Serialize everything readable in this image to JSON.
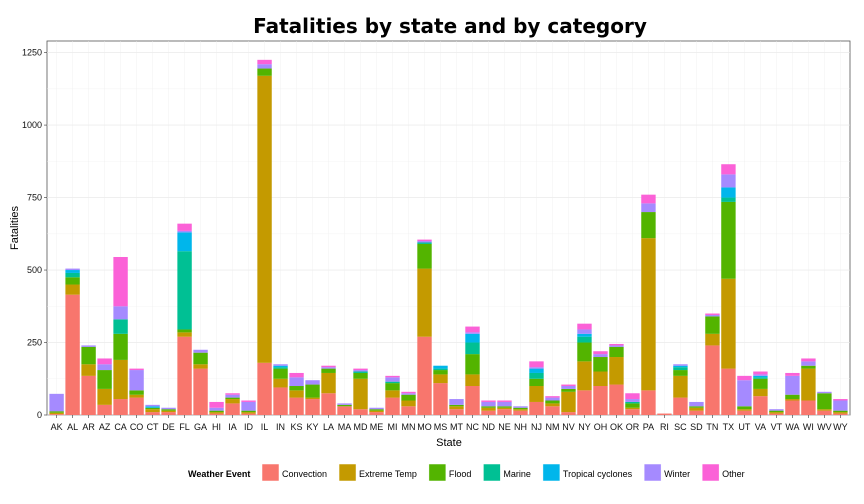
{
  "chart_data": {
    "type": "bar",
    "stacked": true,
    "title": "Fatalities by state and by category",
    "xlabel": "State",
    "ylabel": "Fatalities",
    "ylim": [
      0,
      1290
    ],
    "yticks": [
      0,
      250,
      500,
      750,
      1000,
      1250
    ],
    "grid": true,
    "legend_position": "bottom",
    "legend_title": "Weather Event",
    "categories": [
      "AK",
      "AL",
      "AR",
      "AZ",
      "CA",
      "CO",
      "CT",
      "DE",
      "FL",
      "GA",
      "HI",
      "IA",
      "ID",
      "IL",
      "IN",
      "KS",
      "KY",
      "LA",
      "MA",
      "MD",
      "ME",
      "MI",
      "MN",
      "MO",
      "MS",
      "MT",
      "NC",
      "ND",
      "NE",
      "NH",
      "NJ",
      "NM",
      "NV",
      "NY",
      "OH",
      "OK",
      "OR",
      "PA",
      "RI",
      "SC",
      "SD",
      "TN",
      "TX",
      "UT",
      "VA",
      "VT",
      "WA",
      "WI",
      "WV",
      "WY"
    ],
    "series": [
      {
        "name": "Convection",
        "color": "#F8766D",
        "values": [
          3,
          415,
          135,
          35,
          55,
          60,
          10,
          10,
          270,
          160,
          5,
          40,
          5,
          180,
          95,
          60,
          55,
          75,
          30,
          20,
          10,
          60,
          30,
          270,
          110,
          20,
          100,
          15,
          20,
          15,
          45,
          30,
          10,
          85,
          100,
          105,
          20,
          85,
          5,
          60,
          15,
          240,
          160,
          15,
          65,
          5,
          50,
          50,
          15,
          5
        ]
      },
      {
        "name": "Extreme Temp",
        "color": "#C49A00",
        "values": [
          5,
          35,
          40,
          55,
          135,
          10,
          10,
          5,
          15,
          15,
          5,
          15,
          5,
          990,
          30,
          25,
          5,
          70,
          0,
          105,
          5,
          25,
          20,
          235,
          30,
          10,
          40,
          10,
          5,
          5,
          55,
          10,
          70,
          100,
          50,
          95,
          5,
          525,
          0,
          75,
          10,
          40,
          310,
          5,
          25,
          5,
          5,
          110,
          5,
          5
        ]
      },
      {
        "name": "Flood",
        "color": "#53B400",
        "values": [
          5,
          25,
          60,
          65,
          90,
          15,
          5,
          5,
          10,
          40,
          5,
          5,
          5,
          25,
          35,
          15,
          45,
          15,
          5,
          20,
          5,
          25,
          20,
          85,
          15,
          5,
          70,
          5,
          5,
          5,
          25,
          10,
          10,
          65,
          50,
          35,
          15,
          90,
          0,
          20,
          5,
          60,
          265,
          10,
          35,
          5,
          15,
          10,
          55,
          5
        ]
      },
      {
        "name": "Marine",
        "color": "#00C094",
        "values": [
          0,
          15,
          0,
          0,
          50,
          0,
          0,
          0,
          270,
          0,
          0,
          0,
          0,
          0,
          5,
          0,
          0,
          0,
          0,
          5,
          0,
          5,
          0,
          5,
          5,
          0,
          40,
          0,
          0,
          0,
          20,
          0,
          0,
          20,
          0,
          0,
          5,
          0,
          0,
          10,
          0,
          0,
          15,
          0,
          5,
          0,
          0,
          0,
          0,
          0
        ]
      },
      {
        "name": "Tropical cyclones",
        "color": "#00B6EB",
        "values": [
          0,
          10,
          0,
          0,
          0,
          0,
          5,
          0,
          65,
          0,
          0,
          0,
          0,
          0,
          5,
          0,
          0,
          0,
          0,
          0,
          0,
          0,
          0,
          0,
          10,
          0,
          30,
          0,
          0,
          0,
          15,
          0,
          0,
          10,
          0,
          0,
          0,
          0,
          0,
          5,
          0,
          0,
          35,
          0,
          5,
          0,
          0,
          0,
          0,
          0
        ]
      },
      {
        "name": "Winter",
        "color": "#A58AFF",
        "values": [
          60,
          5,
          5,
          20,
          45,
          70,
          5,
          5,
          5,
          10,
          10,
          10,
          30,
          15,
          5,
          30,
          15,
          5,
          5,
          5,
          5,
          15,
          5,
          5,
          0,
          20,
          5,
          15,
          15,
          5,
          5,
          10,
          10,
          15,
          10,
          5,
          10,
          30,
          0,
          5,
          15,
          5,
          45,
          90,
          5,
          5,
          65,
          15,
          5,
          35
        ]
      },
      {
        "name": "Other",
        "color": "#FB61D7",
        "values": [
          0,
          0,
          0,
          20,
          170,
          5,
          0,
          0,
          25,
          0,
          20,
          5,
          5,
          15,
          0,
          15,
          0,
          5,
          0,
          5,
          0,
          5,
          5,
          5,
          0,
          0,
          20,
          5,
          5,
          0,
          20,
          5,
          5,
          20,
          10,
          5,
          20,
          30,
          0,
          0,
          0,
          5,
          35,
          15,
          10,
          0,
          10,
          10,
          0,
          5
        ]
      }
    ]
  }
}
